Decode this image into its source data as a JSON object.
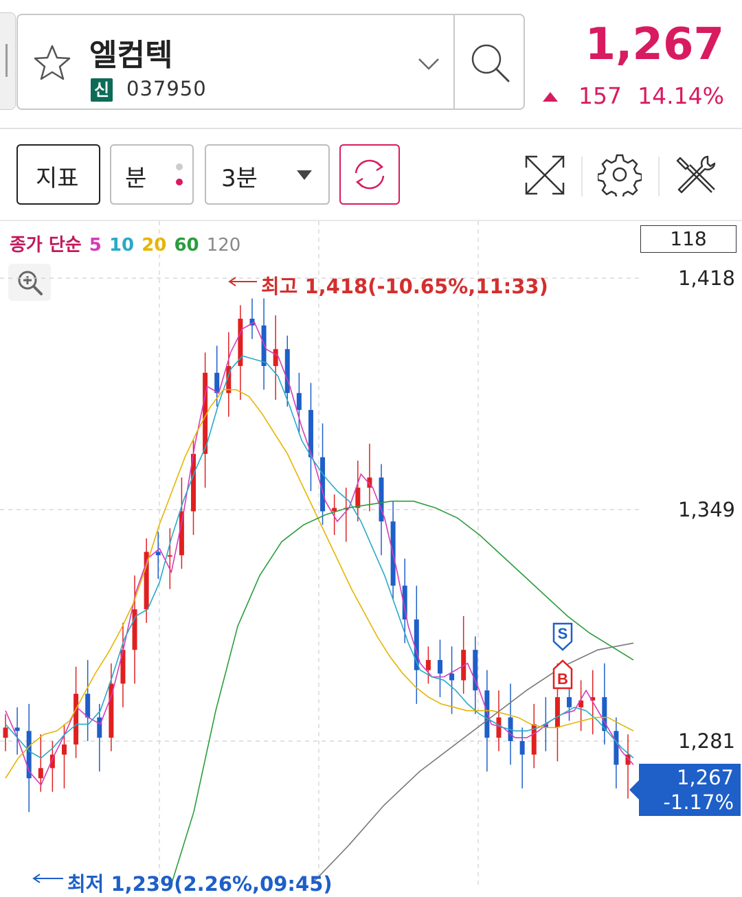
{
  "header": {
    "stock_name": "엘컴텍",
    "market_badge": "신",
    "stock_code": "037950",
    "price": "1,267",
    "change": "157",
    "change_pct": "14.14%",
    "change_direction": "up",
    "up_color": "#d81b60"
  },
  "toolbar": {
    "indicator_label": "지표",
    "period_unit_label": "분",
    "interval_label": "3분",
    "icons": [
      "refresh-icon",
      "fullscreen-icon",
      "settings-gear-icon",
      "tools-icon"
    ]
  },
  "chart": {
    "ma_prefix": "종가 단순",
    "ma_periods": [
      {
        "label": "5",
        "color": "#d63bb8"
      },
      {
        "label": "10",
        "color": "#29a9c9"
      },
      {
        "label": "20",
        "color": "#e6b400"
      },
      {
        "label": "60",
        "color": "#2a9d3c"
      },
      {
        "label": "120",
        "color": "#777777"
      }
    ],
    "volume_value": "118",
    "y_labels": [
      "1,418",
      "1,349",
      "1,281"
    ],
    "current_price": "1,267",
    "current_change": "-1.17%",
    "high_label": "최고 1,418(-10.65%,11:33)",
    "low_label": "최저 1,239(2.26%,09:45)",
    "signal_sell": "S",
    "signal_buy": "B",
    "up_candle_color": "#e02020",
    "down_candle_color": "#1e5fc8"
  },
  "chart_data": {
    "type": "candlestick",
    "interval": "3분",
    "ylim": [
      1239,
      1418
    ],
    "y_ticks": [
      1418,
      1349,
      1281
    ],
    "high": {
      "value": 1418,
      "pct": "-10.65%",
      "time": "11:33"
    },
    "low": {
      "value": 1239,
      "pct": "2.26%",
      "time": "09:45"
    },
    "close": 1267,
    "series": [
      {
        "name": "5",
        "closes": [
          1290,
          1282,
          1272,
          1268,
          1276,
          1283,
          1291,
          1288,
          1286,
          1295,
          1309,
          1325,
          1335,
          1338,
          1331,
          1348,
          1369,
          1386,
          1384,
          1396,
          1403,
          1405,
          1397,
          1395,
          1386,
          1374,
          1364,
          1352,
          1346,
          1350,
          1360,
          1356,
          1347,
          1332,
          1315,
          1304,
          1300,
          1300,
          1302,
          1304,
          1296,
          1286,
          1285,
          1282,
          1282,
          1284,
          1287,
          1289,
          1290,
          1296,
          1290,
          1284,
          1278,
          1274
        ]
      },
      {
        "name": "10",
        "closes": [
          1286,
          1282,
          1278,
          1276,
          1279,
          1283,
          1286,
          1286,
          1290,
          1300,
          1311,
          1318,
          1320,
          1328,
          1341,
          1352,
          1361,
          1369,
          1381,
          1391,
          1395,
          1394,
          1393,
          1389,
          1380,
          1370,
          1364,
          1359,
          1355,
          1352,
          1346,
          1338,
          1330,
          1320,
          1310,
          1302,
          1300,
          1299,
          1296,
          1292,
          1289,
          1287,
          1285,
          1284,
          1284,
          1285,
          1287,
          1289,
          1291,
          1290,
          1287,
          1283,
          1279,
          1276
        ]
      },
      {
        "name": "20",
        "closes": [
          1270,
          1276,
          1280,
          1283,
          1284,
          1287,
          1294,
          1301,
          1307,
          1314,
          1322,
          1333,
          1345,
          1355,
          1365,
          1373,
          1380,
          1385,
          1385,
          1383,
          1378,
          1372,
          1366,
          1358,
          1350,
          1342,
          1334,
          1326,
          1319,
          1312,
          1306,
          1301,
          1297,
          1294,
          1292,
          1291,
          1290,
          1290,
          1290,
          1289,
          1288,
          1286,
          1285,
          1285,
          1286,
          1287,
          1288,
          1288,
          1286,
          1284
        ]
      },
      {
        "name": "60",
        "closes": [
          1239,
          1260,
          1290,
          1315,
          1330,
          1340,
          1345,
          1348,
          1350,
          1351,
          1352,
          1352,
          1350,
          1347,
          1342,
          1336,
          1330,
          1324,
          1318,
          1313,
          1309,
          1305
        ]
      },
      {
        "name": "120",
        "closes": [
          1239,
          1250,
          1262,
          1272,
          1280,
          1288,
          1296,
          1303,
          1308,
          1310
        ]
      }
    ]
  }
}
